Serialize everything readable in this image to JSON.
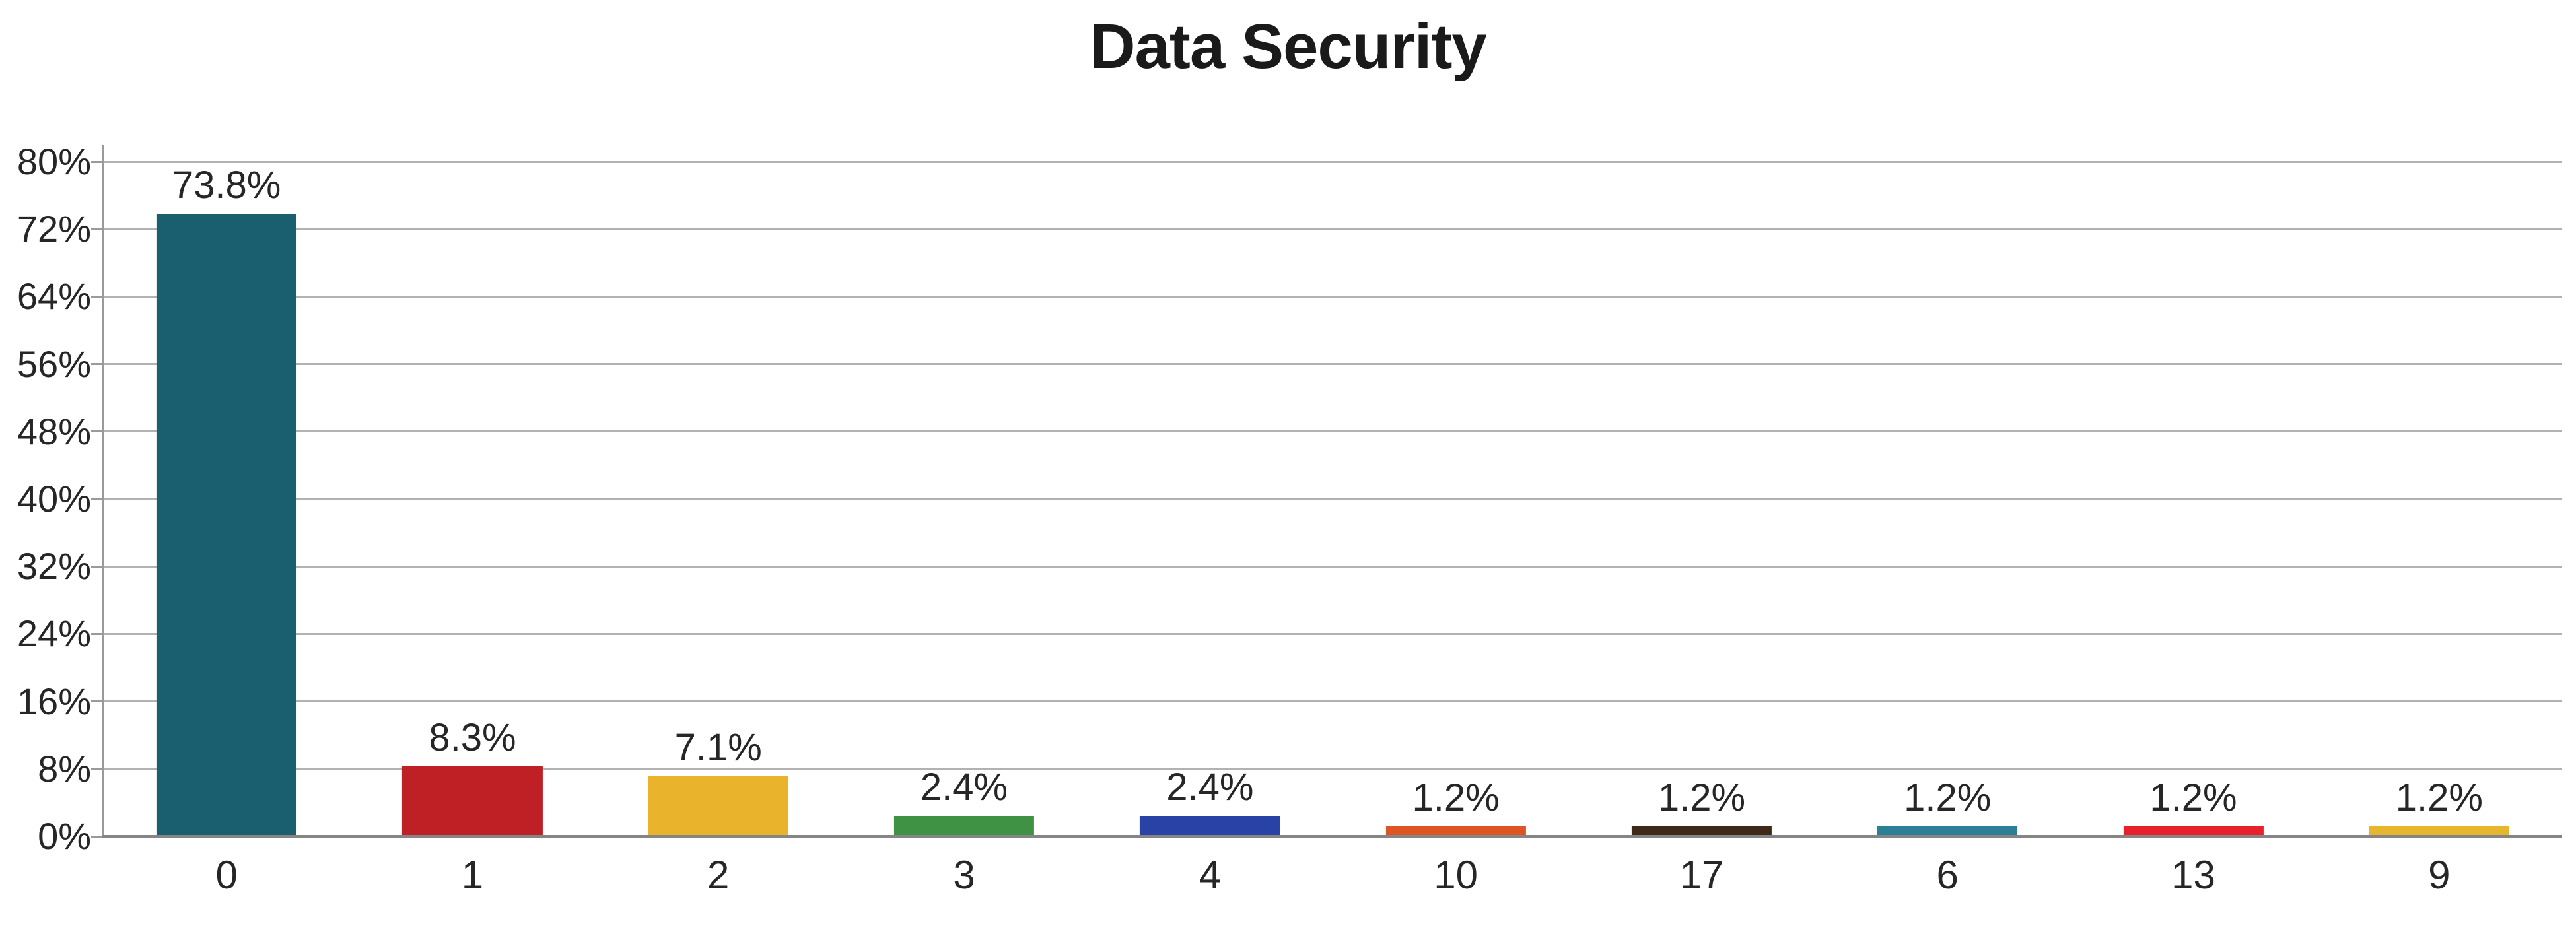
{
  "chart_data": {
    "type": "bar",
    "title": "Data Security",
    "categories": [
      "0",
      "1",
      "2",
      "3",
      "4",
      "10",
      "17",
      "6",
      "13",
      "9"
    ],
    "values": [
      73.8,
      8.3,
      7.1,
      2.4,
      2.4,
      1.2,
      1.2,
      1.2,
      1.2,
      1.2
    ],
    "bar_labels": [
      "73.8%",
      "8.3%",
      "7.1%",
      "2.4%",
      "2.4%",
      "1.2%",
      "1.2%",
      "1.2%",
      "1.2%",
      "1.2%"
    ],
    "bar_colors": [
      "#1A5F70",
      "#BF2026",
      "#E9B32C",
      "#3F9143",
      "#2843A5",
      "#DC5522",
      "#3E2817",
      "#2B8095",
      "#E8202C",
      "#E6B62F"
    ],
    "xlabel": "",
    "ylabel": "",
    "ylim": [
      0,
      80
    ],
    "y_ticks": [
      {
        "value": 80,
        "label": "80%"
      },
      {
        "value": 72,
        "label": "72%"
      },
      {
        "value": 64,
        "label": "64%"
      },
      {
        "value": 56,
        "label": "56%"
      },
      {
        "value": 48,
        "label": "48%"
      },
      {
        "value": 40,
        "label": "40%"
      },
      {
        "value": 32,
        "label": "32%"
      },
      {
        "value": 24,
        "label": "24%"
      },
      {
        "value": 16,
        "label": "16%"
      },
      {
        "value": 8,
        "label": "8%"
      },
      {
        "value": 0,
        "label": "0%"
      }
    ],
    "grid": "horizontal",
    "legend": "none",
    "colors": {
      "gridline": "#b2b2b2",
      "axis": "#9a9a9a",
      "axis_bottom": "#858585",
      "text": "#262626",
      "title": "#1a1a1a",
      "background": "#ffffff"
    }
  }
}
